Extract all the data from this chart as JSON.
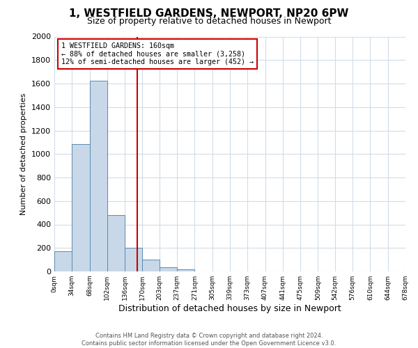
{
  "title": "1, WESTFIELD GARDENS, NEWPORT, NP20 6PW",
  "subtitle": "Size of property relative to detached houses in Newport",
  "xlabel": "Distribution of detached houses by size in Newport",
  "ylabel": "Number of detached properties",
  "bar_color": "#c8d8e8",
  "bar_edge_color": "#5a8ab0",
  "bin_edges": [
    0,
    34,
    68,
    102,
    136,
    170,
    203,
    237,
    271,
    305,
    339,
    373,
    407,
    441,
    475,
    509,
    542,
    576,
    610,
    644,
    678
  ],
  "bar_heights": [
    170,
    1085,
    1625,
    480,
    200,
    100,
    35,
    20,
    0,
    0,
    0,
    0,
    0,
    0,
    0,
    0,
    0,
    0,
    0,
    0
  ],
  "tick_labels": [
    "0sqm",
    "34sqm",
    "68sqm",
    "102sqm",
    "136sqm",
    "170sqm",
    "203sqm",
    "237sqm",
    "271sqm",
    "305sqm",
    "339sqm",
    "373sqm",
    "407sqm",
    "441sqm",
    "475sqm",
    "509sqm",
    "542sqm",
    "576sqm",
    "610sqm",
    "644sqm",
    "678sqm"
  ],
  "ylim": [
    0,
    2000
  ],
  "yticks": [
    0,
    200,
    400,
    600,
    800,
    1000,
    1200,
    1400,
    1600,
    1800,
    2000
  ],
  "property_size": 160,
  "vline_color": "#cc0000",
  "annotation_text_line1": "1 WESTFIELD GARDENS: 160sqm",
  "annotation_text_line2": "← 88% of detached houses are smaller (3,258)",
  "annotation_text_line3": "12% of semi-detached houses are larger (452) →",
  "annotation_box_color": "#cc0000",
  "background_color": "#ffffff",
  "grid_color": "#d0dce8",
  "footer_line1": "Contains HM Land Registry data © Crown copyright and database right 2024.",
  "footer_line2": "Contains public sector information licensed under the Open Government Licence v3.0."
}
